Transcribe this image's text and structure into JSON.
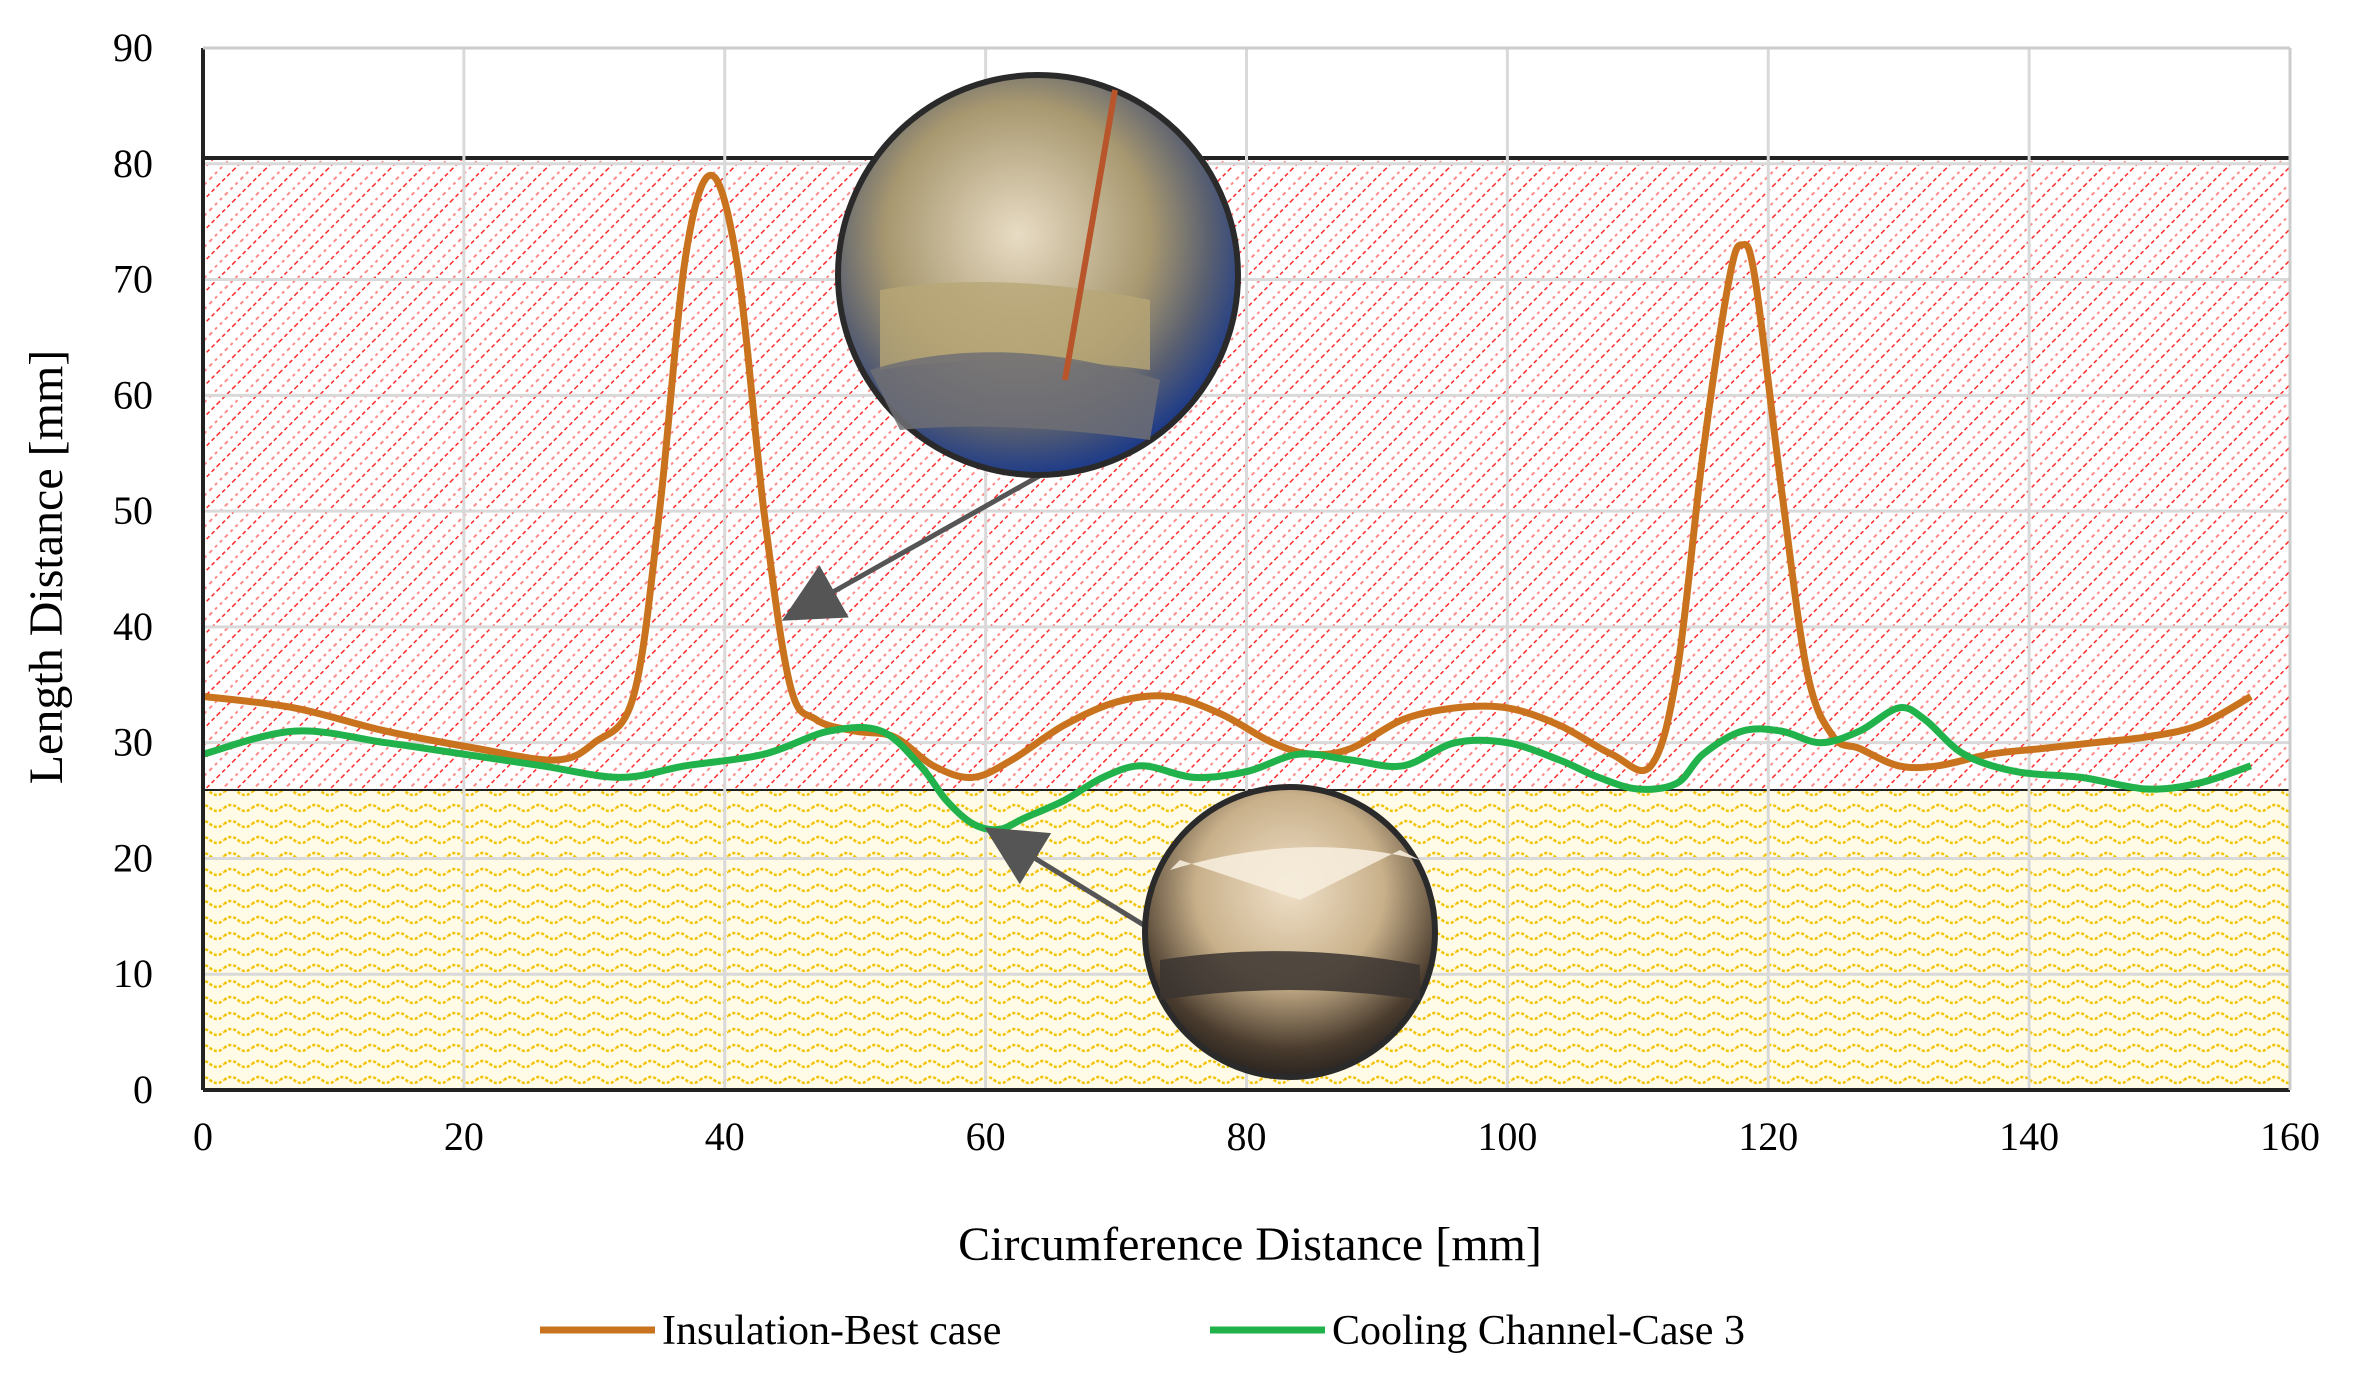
{
  "chart_data": {
    "type": "line",
    "title": "",
    "xlabel": "Circumference Distance [mm]",
    "ylabel": "Length Distance [mm]",
    "xlim": [
      0,
      160
    ],
    "ylim": [
      0,
      90
    ],
    "xticks": [
      0,
      20,
      40,
      60,
      80,
      100,
      120,
      140,
      160
    ],
    "yticks": [
      0,
      10,
      20,
      30,
      40,
      50,
      60,
      70,
      80,
      90
    ],
    "grid": true,
    "legend_position": "bottom",
    "bands": [
      {
        "from": 0,
        "to": 26,
        "color": "#f2c200",
        "pattern": "wavy"
      },
      {
        "from": 26,
        "to": 80.5,
        "color": "#ff2020",
        "pattern": "diagonal"
      }
    ],
    "series": [
      {
        "name": "Insulation-Best case",
        "color": "#c9731e",
        "x": [
          0,
          7,
          14,
          21,
          27,
          30,
          33,
          35,
          37,
          39,
          41,
          43,
          45,
          47,
          50,
          53,
          56,
          59,
          62,
          66,
          70,
          74,
          78,
          82,
          85,
          88,
          92,
          96,
          100,
          104,
          108,
          111,
          113,
          115,
          117,
          118,
          119,
          121,
          123,
          125,
          127,
          130,
          133,
          137,
          141,
          145,
          149,
          153,
          157
        ],
        "y": [
          34,
          33,
          31,
          29.5,
          28.5,
          30,
          34,
          50,
          72,
          79,
          71,
          50,
          35,
          32,
          31,
          30.5,
          28,
          27,
          28.5,
          31.5,
          33.5,
          34,
          32.5,
          30,
          29,
          29.5,
          32,
          33,
          33,
          31.5,
          29,
          28,
          36,
          55,
          70,
          73,
          70,
          52,
          36,
          30.5,
          29.5,
          28,
          28,
          29,
          29.5,
          30,
          30.5,
          31.5,
          34
        ]
      },
      {
        "name": "Cooling Channel-Case 3",
        "color": "#21b24b",
        "x": [
          0,
          7,
          14,
          20,
          26,
          32,
          37,
          43,
          48,
          52,
          55,
          57,
          59,
          61,
          63,
          66,
          69,
          72,
          76,
          80,
          84,
          88,
          92,
          96,
          100,
          104,
          107,
          110,
          113,
          115,
          118,
          121,
          124,
          127,
          130,
          132,
          135,
          139,
          144,
          149,
          153,
          157
        ],
        "y": [
          29,
          31,
          30,
          29,
          28,
          27,
          28,
          29,
          31,
          31,
          28,
          25,
          23,
          22.5,
          23.5,
          25,
          27,
          28,
          27,
          27.5,
          29,
          28.5,
          28,
          30,
          30,
          28.5,
          27,
          26,
          26.5,
          29,
          31,
          31,
          30,
          31,
          33,
          32,
          29,
          27.5,
          27,
          26,
          26.5,
          28
        ]
      }
    ]
  }
}
